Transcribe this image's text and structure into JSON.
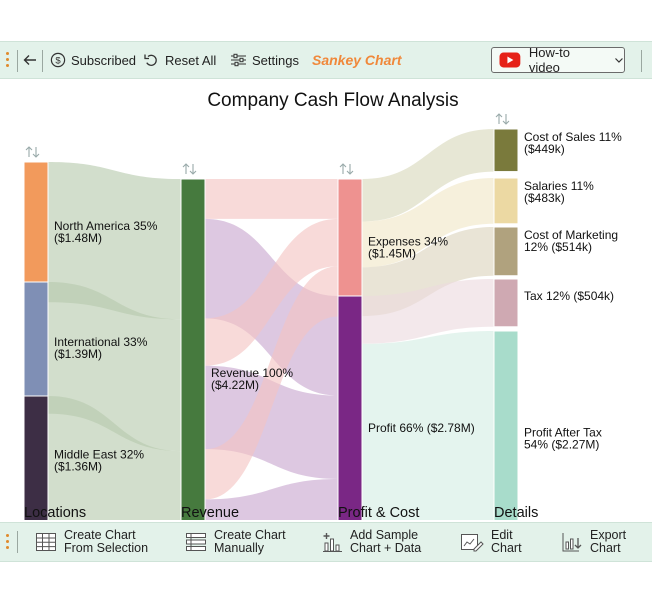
{
  "toolbar": {
    "subscribed_label": "Subscribed",
    "reset_label": "Reset All",
    "settings_label": "Settings",
    "sankey_label": "Sankey Chart",
    "howto_label": "How-to video"
  },
  "bottom_toolbar": {
    "create_selection_line1": "Create Chart",
    "create_selection_line2": "From Selection",
    "create_manual_line1": "Create Chart",
    "create_manual_line2": "Manually",
    "add_sample_line1": "Add Sample",
    "add_sample_line2": "Chart + Data",
    "edit_line1": "Edit",
    "edit_line2": "Chart",
    "export_line1": "Export",
    "export_line2": "Chart"
  },
  "colors": {
    "accent": "#f0883a",
    "toolbar_bg": "#e3f2ea",
    "youtube_red": "#e62117"
  },
  "chart_data": {
    "type": "sankey",
    "title": "Company Cash Flow Analysis",
    "stages": [
      "Locations",
      "Revenue",
      "Profit & Cost",
      "Details"
    ],
    "nodes": [
      {
        "id": "na",
        "stage": 0,
        "label_line1": "North America 35%",
        "label_line2": "($1.48M)",
        "value": 1.48,
        "color": "#f29a5c"
      },
      {
        "id": "intl",
        "stage": 0,
        "label_line1": "International 33%",
        "label_line2": "($1.39M)",
        "value": 1.39,
        "color": "#7f8fb5"
      },
      {
        "id": "me",
        "stage": 0,
        "label_line1": "Middle East 32%",
        "label_line2": "($1.36M)",
        "value": 1.36,
        "color": "#3d2e45"
      },
      {
        "id": "rev",
        "stage": 1,
        "label_line1": "Revenue 100%",
        "label_line2": "($4.22M)",
        "value": 4.22,
        "color": "#467a3e"
      },
      {
        "id": "exp",
        "stage": 2,
        "label_line1": "Expenses 34%",
        "label_line2": "($1.45M)",
        "value": 1.45,
        "color": "#ee9290"
      },
      {
        "id": "profit",
        "stage": 2,
        "label_line1": "Profit 66% ($2.78M)",
        "label_line2": "",
        "value": 2.78,
        "color": "#7a2785"
      },
      {
        "id": "cos",
        "stage": 3,
        "label_line1": "Cost of Sales 11%",
        "label_line2": "($449k)",
        "value": 0.449,
        "color": "#7a7a3c"
      },
      {
        "id": "sal",
        "stage": 3,
        "label_line1": "Salaries 11%",
        "label_line2": "($483k)",
        "value": 0.483,
        "color": "#ecd9a3"
      },
      {
        "id": "mkt",
        "stage": 3,
        "label_line1": "Cost of Marketing",
        "label_line2": "12% ($514k)",
        "value": 0.514,
        "color": "#b0a27e"
      },
      {
        "id": "tax",
        "stage": 3,
        "label_line1": "Tax 12% ($504k)",
        "label_line2": "",
        "value": 0.504,
        "color": "#cfa9b2"
      },
      {
        "id": "pat",
        "stage": 3,
        "label_line1": "Profit After Tax",
        "label_line2": "54% ($2.27M)",
        "value": 2.27,
        "color": "#a8dccb"
      }
    ],
    "links": [
      {
        "source": "na",
        "target": "rev",
        "value": 1.48,
        "color": "#b7c9ad"
      },
      {
        "source": "intl",
        "target": "rev",
        "value": 1.39,
        "color": "#b7c9ad"
      },
      {
        "source": "me",
        "target": "rev",
        "value": 1.36,
        "color": "#b7c9ad"
      },
      {
        "source": "rev",
        "target": "exp",
        "value": 0.42,
        "color": "#f4c4c2"
      },
      {
        "source": "rev",
        "target": "profit",
        "value": 1.05,
        "color": "#c8a6cf"
      },
      {
        "source": "rev",
        "target": "exp",
        "value": 0.5,
        "color": "#f4c4c2"
      },
      {
        "source": "rev",
        "target": "profit",
        "value": 0.88,
        "color": "#c8a6cf"
      },
      {
        "source": "rev",
        "target": "exp",
        "value": 0.53,
        "color": "#f4c4c2"
      },
      {
        "source": "rev",
        "target": "profit",
        "value": 0.84,
        "color": "#c8a6cf"
      },
      {
        "source": "exp",
        "target": "cos",
        "value": 0.449,
        "color": "#d8d8bc"
      },
      {
        "source": "exp",
        "target": "sal",
        "value": 0.483,
        "color": "#f1e6c7"
      },
      {
        "source": "exp",
        "target": "mkt",
        "value": 0.514,
        "color": "#dcd3bd"
      },
      {
        "source": "profit",
        "target": "tax",
        "value": 0.504,
        "color": "#ecdadf"
      },
      {
        "source": "profit",
        "target": "pat",
        "value": 2.27,
        "color": "#d3eee4"
      }
    ]
  }
}
